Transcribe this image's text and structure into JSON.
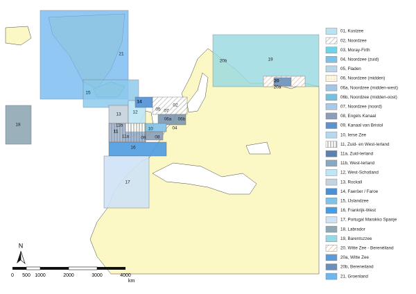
{
  "map_labels": [
    "21",
    "15",
    "18",
    "13",
    "12",
    "14",
    "11",
    "11b",
    "11a",
    "16",
    "17",
    "19",
    "20",
    "20a",
    "20b",
    "02",
    "06a",
    "06b",
    "04",
    "08",
    "09",
    "07",
    "05",
    "10"
  ],
  "north": "N",
  "scale": {
    "ticks": [
      "0",
      "500",
      "1000",
      "2000",
      "3000",
      "4000"
    ],
    "unit": "km"
  },
  "legend": [
    {
      "label": "01, Kustzee",
      "color": "#b8e3ef"
    },
    {
      "label": "02, Noordzee",
      "pattern": "diagonal"
    },
    {
      "label": "03, Moray-Firth",
      "color": "#6fd3ea"
    },
    {
      "label": "04, Noordzee (zuid)",
      "color": "#7fc0e6"
    },
    {
      "label": "05, Fladen",
      "color": "#b9d6e6"
    },
    {
      "label": "06, Noordzee (midden)",
      "pattern": "dotted"
    },
    {
      "label": "06a, Noordzee (midden-west)",
      "color": "#a4c6e0"
    },
    {
      "label": "06b, Noordzee (midden-oost)",
      "color": "#78bfdd"
    },
    {
      "label": "07, Noordzee (noord)",
      "color": "#a9c9e6"
    },
    {
      "label": "08, Engels Kanaal",
      "color": "#8a9eb6"
    },
    {
      "label": "09, Kanaal van Bristol",
      "color": "#5f92c8"
    },
    {
      "label": "10, Ierse Zee",
      "color": "#b8d8f0"
    },
    {
      "label": "11, Zuid- en West-Ierland",
      "pattern": "vertical"
    },
    {
      "label": "11a, Zuid-Ierland",
      "color": "#5b7fb0"
    },
    {
      "label": "11b, West-Ierland",
      "color": "#8aa6c0"
    },
    {
      "label": "12, West-Schotland",
      "color": "#bfe6f6"
    },
    {
      "label": "13, Rockall",
      "color": "#c4d3de"
    },
    {
      "label": "14, Faeröer / Faroe",
      "color": "#4e8fd3"
    },
    {
      "label": "15, IJslandzee",
      "color": "#7fc3ea"
    },
    {
      "label": "16, Frankrijk-West",
      "color": "#4b9be0"
    },
    {
      "label": "17, Portugal Marokko Spanje",
      "color": "#cfe3f7"
    },
    {
      "label": "18, Labrador",
      "color": "#8fa9b4"
    },
    {
      "label": "19, Barentszzee",
      "color": "#97d9e2"
    },
    {
      "label": "20, Witte Zee - Berenéiland",
      "pattern": "orange"
    },
    {
      "label": "20a, Witte Zee",
      "color": "#5e9bd6"
    },
    {
      "label": "20b, Bereneiland",
      "color": "#6a8fb8"
    },
    {
      "label": "21, Groenland",
      "color": "#6fb6ef"
    }
  ]
}
